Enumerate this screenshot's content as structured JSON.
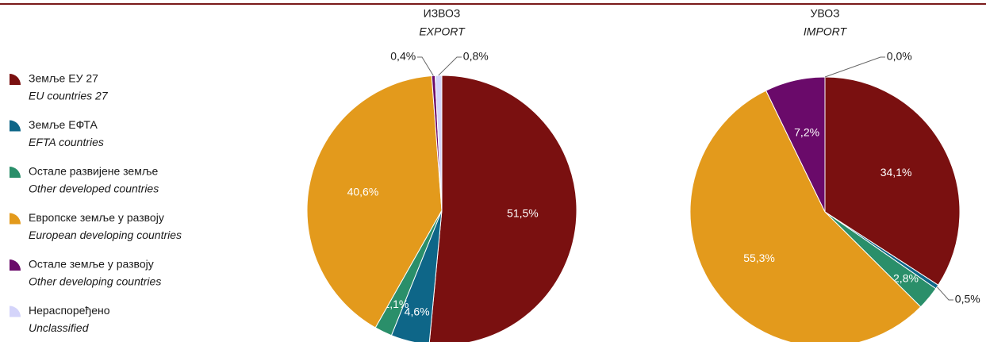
{
  "legend": {
    "labels": [
      "Земље ЕУ 27",
      "Земље ЕФТА",
      "Остале развијене земље",
      "Европске земље у развоју",
      "Остале земље у развоју",
      "Нераспоређено"
    ],
    "labels_en": [
      "EU countries 27",
      "EFTA countries",
      "Other developed countries",
      "European developing countries",
      "Other developing countries",
      "Unclassified"
    ],
    "colors": [
      "#7a1010",
      "#0e6688",
      "#2a8f6a",
      "#e39a1c",
      "#6a0a6a",
      "#d4d4fa"
    ]
  },
  "chart_data": [
    {
      "type": "pie",
      "title": "ИЗВОЗ",
      "subtitle": "EXPORT",
      "values": [
        51.5,
        4.6,
        2.1,
        40.6,
        0.4,
        0.8
      ],
      "value_labels": [
        "51,5%",
        "4,6%",
        "2,1%",
        "40,6%",
        "0,4%",
        "0,8%"
      ]
    },
    {
      "type": "pie",
      "title": "УВОЗ",
      "subtitle": "IMPORT",
      "values": [
        34.1,
        0.5,
        2.8,
        55.3,
        7.2,
        0.0
      ],
      "value_labels": [
        "34,1%",
        "0,5%",
        "2,8%",
        "55,3%",
        "7,2%",
        "0,0%"
      ]
    }
  ]
}
